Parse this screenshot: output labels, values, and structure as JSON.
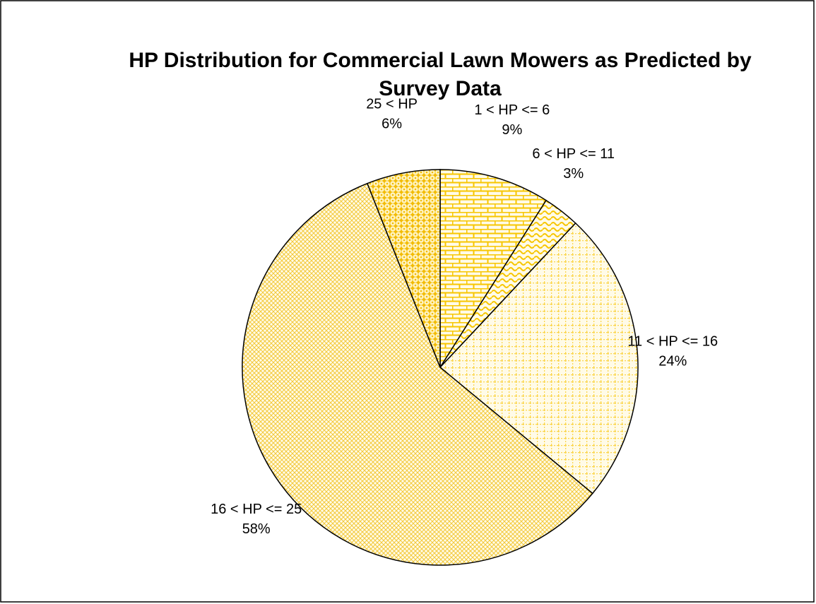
{
  "chart_data": {
    "type": "pie",
    "title": "HP Distribution for Commercial Lawn Mowers as Predicted by Survey Data",
    "categories": [
      "1 < HP <= 6",
      "6 < HP <= 11",
      "11 < HP <= 16",
      "16 < HP <= 25",
      "25 < HP"
    ],
    "values": [
      9,
      3,
      24,
      58,
      6
    ],
    "value_labels": [
      "9%",
      "3%",
      "24%",
      "58%",
      "6%"
    ],
    "colors": [
      "#f7c600",
      "#f7c600",
      "#fbd54a",
      "#f3c93a",
      "#f2bb00"
    ]
  }
}
